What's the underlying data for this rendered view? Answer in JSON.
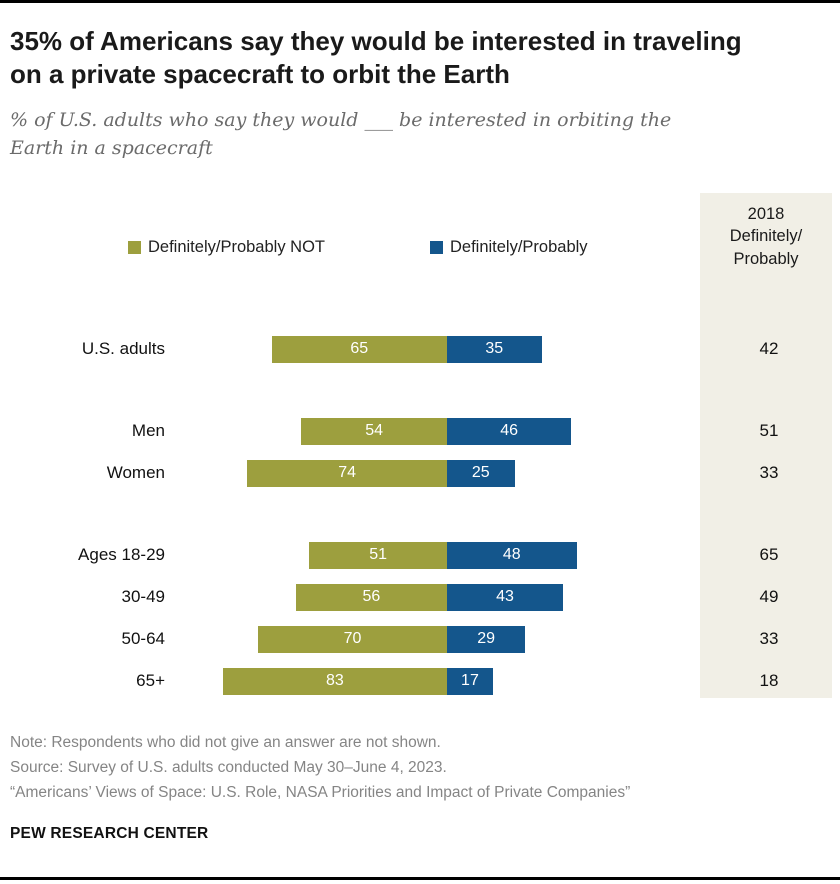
{
  "chart_data": {
    "type": "bar",
    "orientation": "diverging-horizontal",
    "title": "35% of Americans say they would be interested in traveling on a private spacecraft to orbit the Earth",
    "subtitle": "% of U.S. adults who say they would ___ be interested in orbiting the Earth in a spacecraft",
    "categories": [
      "U.S. adults",
      "Men",
      "Women",
      "Ages 18-29",
      "30-49",
      "50-64",
      "65+"
    ],
    "series": [
      {
        "name": "Definitely/Probably NOT",
        "color": "#9d9f3e",
        "values": [
          65,
          54,
          74,
          51,
          56,
          70,
          83
        ]
      },
      {
        "name": "Definitely/Probably",
        "color": "#14568c",
        "values": [
          35,
          46,
          25,
          48,
          43,
          29,
          17
        ]
      }
    ],
    "side_column": {
      "header": "2018\nDefinitely/\nProbably",
      "values": [
        42,
        51,
        33,
        65,
        49,
        33,
        18
      ]
    },
    "group_breaks": [
      1,
      3
    ],
    "xlim": [
      0,
      100
    ],
    "value_labels": "inside-white",
    "legend_position": "top"
  },
  "notes": {
    "note": "Note: Respondents who did not give an answer are not shown.",
    "source": "Source: Survey of U.S. adults conducted May 30–June 4, 2023.",
    "report": "“Americans’ Views of Space: U.S. Role, NASA Priorities and Impact of Private Companies”"
  },
  "footer": "PEW RESEARCH CENTER"
}
